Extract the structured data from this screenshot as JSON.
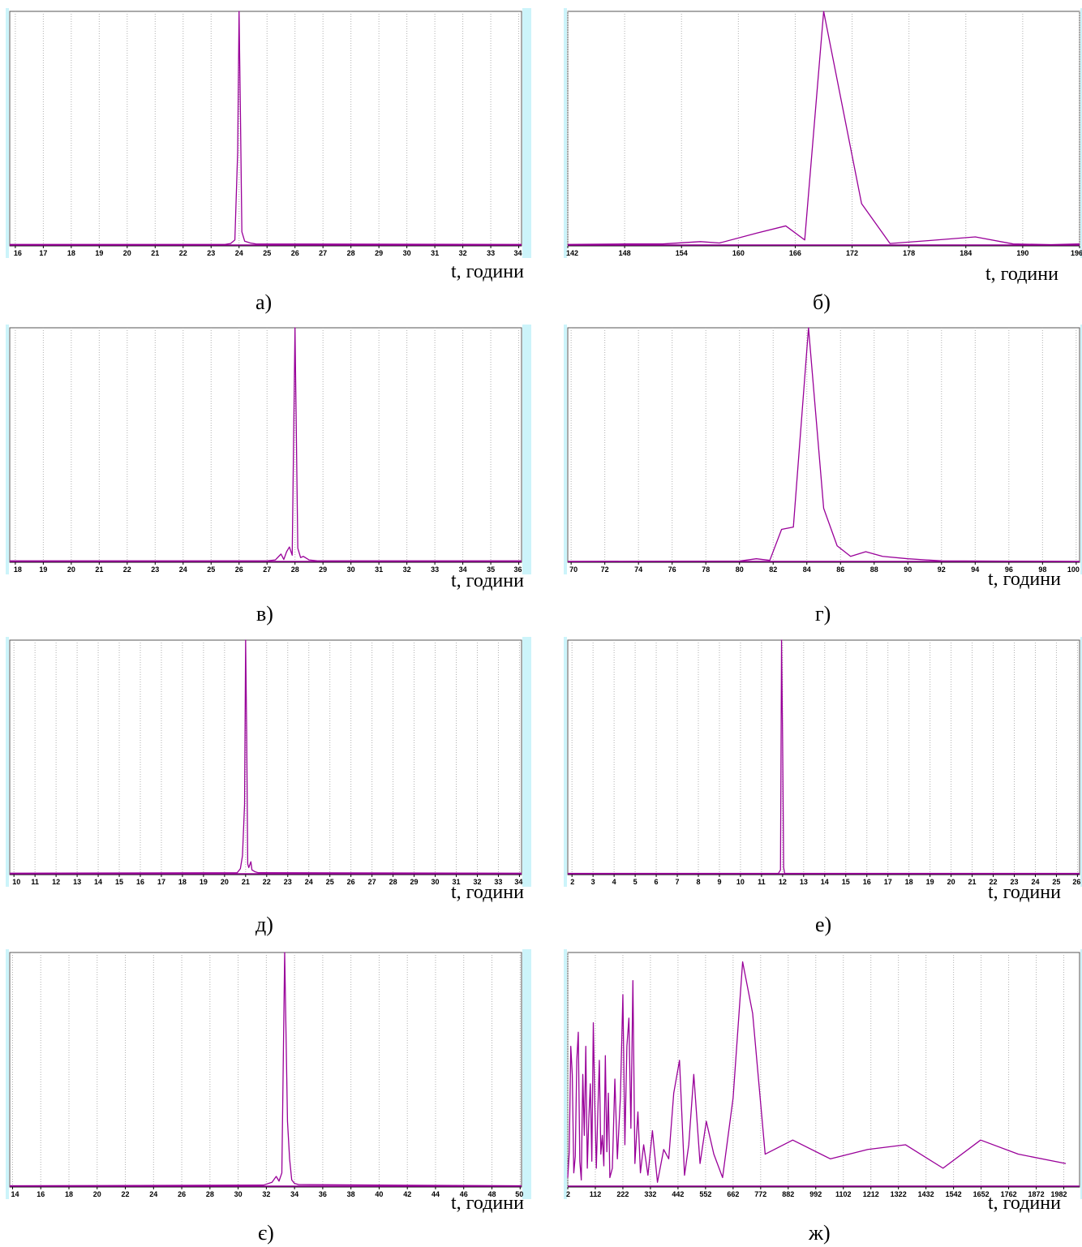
{
  "figure": {
    "x_axis_label": "t, години"
  },
  "colors": {
    "line": "#990099",
    "grid": "#b0b0b0",
    "side_bar": "#ccf4fa",
    "axis": "#000000"
  },
  "chart_data": [
    {
      "id": "a",
      "caption": "а)",
      "type": "line",
      "xlabel": "t, години",
      "xlim": [
        15.8,
        34.1
      ],
      "ylim": [
        0,
        100
      ],
      "grid": true,
      "ticks": [
        "16",
        "17",
        "18",
        "19",
        "20",
        "21",
        "22",
        "23",
        "24",
        "25",
        "26",
        "27",
        "28",
        "29",
        "30",
        "31",
        "32",
        "33",
        "34"
      ],
      "series": [
        {
          "x": [
            15.8,
            23.5,
            23.7,
            23.85,
            23.95,
            24.0,
            24.05,
            24.1,
            24.2,
            24.4,
            24.6,
            34.1
          ],
          "y": [
            0.6,
            0.6,
            1.0,
            2.5,
            40,
            100,
            55,
            6,
            2,
            1.2,
            0.8,
            0.6
          ]
        }
      ]
    },
    {
      "id": "b",
      "caption": "б)",
      "type": "line",
      "xlabel": "t, години",
      "xlim": [
        142,
        196
      ],
      "ylim": [
        0,
        100
      ],
      "grid": true,
      "ticks": [
        "142",
        "148",
        "154",
        "160",
        "166",
        "172",
        "178",
        "184",
        "190",
        "196"
      ],
      "series": [
        {
          "x": [
            142,
            148,
            152,
            156,
            158,
            162,
            165,
            167,
            169,
            173,
            176,
            180,
            185,
            189,
            193,
            196
          ],
          "y": [
            0.6,
            0.8,
            0.8,
            1.8,
            1.2,
            5.5,
            8.5,
            2.5,
            100,
            18,
            1,
            2.2,
            3.8,
            0.8,
            0.5,
            0.8
          ]
        }
      ]
    },
    {
      "id": "c",
      "caption": "в)",
      "type": "line",
      "xlabel": "t, години",
      "xlim": [
        17.8,
        36.1
      ],
      "ylim": [
        0,
        100
      ],
      "grid": true,
      "ticks": [
        "18",
        "19",
        "20",
        "21",
        "22",
        "23",
        "24",
        "25",
        "26",
        "27",
        "28",
        "29",
        "30",
        "31",
        "32",
        "33",
        "34",
        "35",
        "36"
      ],
      "series": [
        {
          "x": [
            17.8,
            27.0,
            27.3,
            27.5,
            27.6,
            27.7,
            27.8,
            27.9,
            28.0,
            28.1,
            28.2,
            28.3,
            28.5,
            28.8,
            36.1
          ],
          "y": [
            0.6,
            0.6,
            1.0,
            3.5,
            1.2,
            4.5,
            6.5,
            3,
            100,
            6,
            2,
            2.5,
            1,
            0.6,
            0.6
          ]
        }
      ]
    },
    {
      "id": "d",
      "caption": "г)",
      "type": "line",
      "xlabel": "t, години",
      "xlim": [
        69.8,
        100.2
      ],
      "ylim": [
        0,
        100
      ],
      "grid": true,
      "ticks": [
        "70",
        "72",
        "74",
        "76",
        "78",
        "80",
        "82",
        "84",
        "86",
        "88",
        "90",
        "92",
        "94",
        "96",
        "98",
        "100"
      ],
      "series": [
        {
          "x": [
            69.8,
            80,
            81,
            81.8,
            82.5,
            83.2,
            84.1,
            85.0,
            85.8,
            86.6,
            87.5,
            88.5,
            90,
            92,
            100.2
          ],
          "y": [
            0.3,
            0.5,
            1.5,
            0.8,
            14,
            15,
            100,
            23,
            7,
            2.5,
            4.5,
            2.5,
            1.5,
            0.6,
            0.3
          ]
        }
      ]
    },
    {
      "id": "e",
      "caption": "д)",
      "type": "line",
      "xlabel": "t, години",
      "xlim": [
        9.8,
        34.1
      ],
      "ylim": [
        0,
        100
      ],
      "grid": true,
      "ticks": [
        "10",
        "11",
        "12",
        "13",
        "14",
        "15",
        "16",
        "17",
        "18",
        "19",
        "20",
        "21",
        "22",
        "23",
        "24",
        "25",
        "26",
        "27",
        "28",
        "29",
        "30",
        "31",
        "32",
        "33",
        "34"
      ],
      "series": [
        {
          "x": [
            9.8,
            20.6,
            20.75,
            20.85,
            20.95,
            21.0,
            21.05,
            21.1,
            21.15,
            21.25,
            21.3,
            21.45,
            21.6,
            34.1
          ],
          "y": [
            0.6,
            0.8,
            2.5,
            8,
            30,
            100,
            60,
            4.5,
            3,
            5.5,
            2,
            1.2,
            0.8,
            0.6
          ]
        }
      ]
    },
    {
      "id": "f",
      "caption": "е)",
      "type": "line",
      "xlabel": "t, години",
      "xlim": [
        1.8,
        26.1
      ],
      "ylim": [
        0,
        100
      ],
      "grid": true,
      "ticks": [
        "2",
        "3",
        "4",
        "5",
        "6",
        "7",
        "8",
        "9",
        "10",
        "11",
        "12",
        "13",
        "14",
        "15",
        "16",
        "17",
        "18",
        "19",
        "20",
        "21",
        "22",
        "23",
        "24",
        "25",
        "26"
      ],
      "series": [
        {
          "x": [
            1.8,
            11.8,
            11.9,
            11.95,
            12.0,
            12.05,
            12.1,
            26.1
          ],
          "y": [
            0.5,
            0.5,
            2,
            100,
            58,
            3,
            0.5,
            0.5
          ]
        }
      ]
    },
    {
      "id": "g",
      "caption": "є)",
      "type": "line",
      "xlabel": "t, години",
      "xlim": [
        13.8,
        50.1
      ],
      "ylim": [
        0,
        100
      ],
      "grid": true,
      "ticks": [
        "14",
        "16",
        "18",
        "20",
        "22",
        "24",
        "26",
        "28",
        "30",
        "32",
        "34",
        "36",
        "38",
        "40",
        "42",
        "44",
        "46",
        "48",
        "50"
      ],
      "series": [
        {
          "x": [
            13.8,
            31.8,
            32.4,
            32.7,
            32.9,
            33.1,
            33.3,
            33.5,
            33.65,
            33.8,
            34.0,
            34.3,
            50.1
          ],
          "y": [
            0.5,
            0.8,
            2,
            4.5,
            2.5,
            6,
            100,
            28,
            12,
            3,
            1.5,
            1,
            0.5
          ]
        }
      ]
    },
    {
      "id": "h",
      "caption": "ж)",
      "type": "line",
      "xlabel": "t, години",
      "xlim": [
        2,
        2045
      ],
      "ylim": [
        0,
        100
      ],
      "grid": true,
      "ticks": [
        "2",
        "112",
        "222",
        "332",
        "442",
        "552",
        "662",
        "772",
        "882",
        "992",
        "1102",
        "1212",
        "1322",
        "1432",
        "1542",
        "1652",
        "1762",
        "1872",
        "1982"
      ],
      "series": [
        {
          "x": [
            2,
            8,
            14,
            20,
            26,
            32,
            38,
            44,
            50,
            56,
            62,
            68,
            74,
            80,
            86,
            92,
            98,
            104,
            110,
            116,
            122,
            128,
            134,
            140,
            146,
            152,
            158,
            164,
            170,
            180,
            190,
            200,
            212,
            222,
            230,
            238,
            246,
            254,
            262,
            270,
            282,
            292,
            305,
            322,
            340,
            360,
            385,
            405,
            425,
            448,
            468,
            485,
            505,
            530,
            555,
            585,
            620,
            662,
            700,
            740,
            790,
            900,
            1050,
            1200,
            1350,
            1500,
            1650,
            1800,
            1990
          ],
          "y": [
            4,
            15,
            60,
            48,
            6,
            13,
            54,
            66,
            11,
            3,
            48,
            22,
            60,
            8,
            29,
            44,
            11,
            70,
            35,
            8,
            32,
            54,
            14,
            22,
            9,
            56,
            15,
            40,
            4,
            8,
            46,
            12,
            38,
            82,
            18,
            60,
            72,
            25,
            88,
            10,
            32,
            6,
            18,
            5,
            24,
            2,
            16,
            12,
            40,
            54,
            5,
            18,
            48,
            10,
            28,
            14,
            4,
            38,
            96,
            74,
            14,
            20,
            12,
            16,
            18,
            8,
            20,
            14,
            10
          ]
        }
      ]
    }
  ]
}
